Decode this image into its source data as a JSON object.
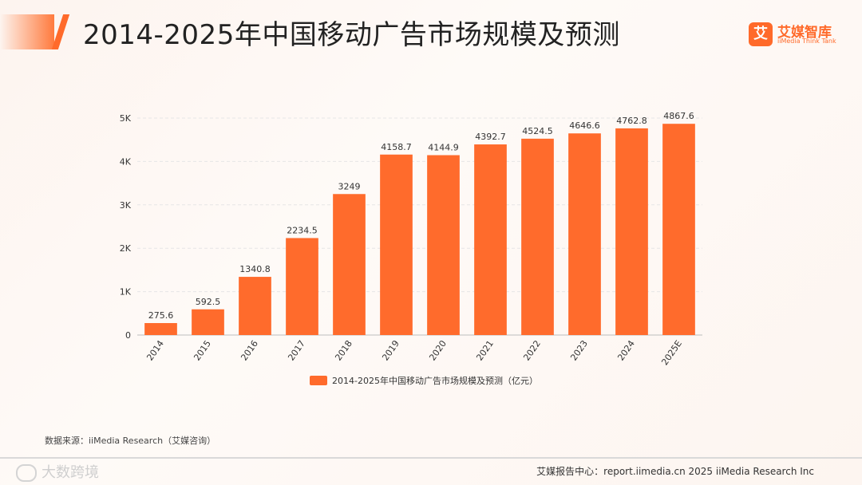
{
  "header": {
    "title": "2014-2025年中国移动广告市场规模及预测",
    "logo_mark": "艾",
    "logo_cn": "艾媒智库",
    "logo_en": "iiMedia Think Tank"
  },
  "chart_data": {
    "type": "bar",
    "title": "2014-2025年中国移动广告市场规模及预测",
    "categories": [
      "2014",
      "2015",
      "2016",
      "2017",
      "2018",
      "2019",
      "2020",
      "2021",
      "2022",
      "2023",
      "2024",
      "2025E"
    ],
    "values": [
      275.6,
      592.5,
      1340.8,
      2234.5,
      3249,
      4158.7,
      4144.9,
      4392.7,
      4524.5,
      4646.6,
      4762.8,
      4867.6
    ],
    "labels": [
      "275.6",
      "592.5",
      "1340.8",
      "2234.5",
      "3249",
      "4158.7",
      "4144.9",
      "4392.7",
      "4524.5",
      "4646.6",
      "4762.8",
      "4867.6"
    ],
    "y_ticks": [
      {
        "value": 0,
        "label": "0"
      },
      {
        "value": 1000,
        "label": "1K"
      },
      {
        "value": 2000,
        "label": "2K"
      },
      {
        "value": 3000,
        "label": "3K"
      },
      {
        "value": 4000,
        "label": "4K"
      },
      {
        "value": 5000,
        "label": "5K"
      }
    ],
    "ylim": [
      0,
      5000
    ],
    "series_name": "2014-2025年中国移动广告市场规模及预测（亿元）",
    "legend_position": "bottom",
    "grid": true,
    "color": "#ff6b2c"
  },
  "source": "数据来源：iiMedia Research（艾媒咨询）",
  "footer": {
    "left": "大数跨境",
    "right": "艾媒报告中心：report.iimedia.cn   2025 iiMedia Research Inc"
  }
}
